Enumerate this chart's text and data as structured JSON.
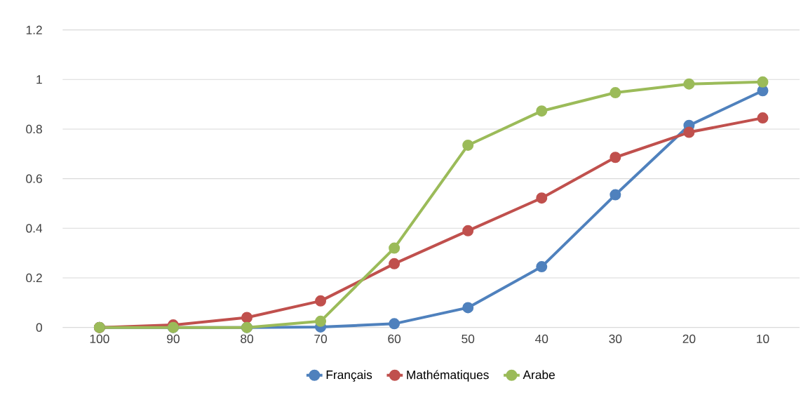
{
  "chart_data": {
    "type": "line",
    "categories": [
      "100",
      "90",
      "80",
      "70",
      "60",
      "50",
      "40",
      "30",
      "20",
      "10"
    ],
    "series": [
      {
        "name": "Français",
        "color": "#4f81bd",
        "values": [
          0,
          0,
          0,
          0.002,
          0.015,
          0.08,
          0.245,
          0.535,
          0.815,
          0.955
        ]
      },
      {
        "name": "Mathématiques",
        "color": "#c0504d",
        "values": [
          0,
          0.01,
          0.04,
          0.107,
          0.257,
          0.39,
          0.522,
          0.686,
          0.787,
          0.845
        ]
      },
      {
        "name": "Arabe",
        "color": "#9bbb59",
        "values": [
          0,
          0,
          0,
          0.025,
          0.32,
          0.735,
          0.873,
          0.947,
          0.982,
          0.99
        ]
      }
    ],
    "ylim": [
      0,
      1.2
    ],
    "yticks": [
      0,
      0.2,
      0.4,
      0.6,
      0.8,
      1,
      1.2
    ],
    "grid": "y",
    "legend": "bottom",
    "marker": "circle",
    "line_style": "solid"
  }
}
